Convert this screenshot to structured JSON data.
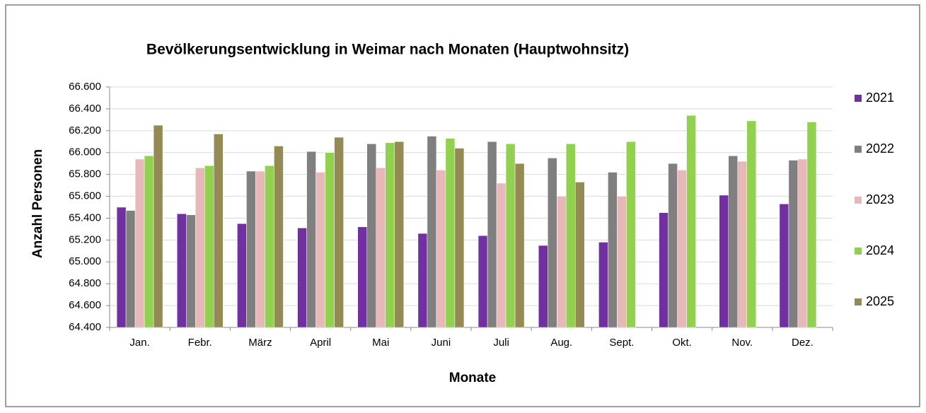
{
  "chart_data": {
    "type": "bar",
    "title": "Bevölkerungsentwicklung in Weimar nach Monaten (Hauptwohnsitz)",
    "x_label": "Monate",
    "y_label": "Anzahl Personen",
    "categories": [
      "Jan.",
      "Febr.",
      "März",
      "April",
      "Mai",
      "Juni",
      "Juli",
      "Aug.",
      "Sept.",
      "Okt.",
      "Nov.",
      "Dez."
    ],
    "series": [
      {
        "name": "2021",
        "color": "#7030a0",
        "values": [
          65500,
          65440,
          65350,
          65310,
          65320,
          65260,
          65240,
          65150,
          65180,
          65450,
          65610,
          65530
        ]
      },
      {
        "name": "2022",
        "color": "#7f7f7f",
        "values": [
          65470,
          65430,
          65830,
          66010,
          66080,
          66150,
          66100,
          65950,
          65820,
          65900,
          65970,
          65930
        ]
      },
      {
        "name": "2023",
        "color": "#e6b9b8",
        "values": [
          65940,
          65860,
          65830,
          65820,
          65860,
          65840,
          65720,
          65600,
          65600,
          65840,
          65920,
          65940
        ]
      },
      {
        "name": "2024",
        "color": "#92d050",
        "values": [
          65970,
          65880,
          65880,
          66000,
          66090,
          66130,
          66080,
          66080,
          66100,
          66340,
          66290,
          66280
        ]
      },
      {
        "name": "2025",
        "color": "#948a54",
        "values": [
          66250,
          66170,
          66060,
          66140,
          66100,
          66040,
          65900,
          65730,
          null,
          null,
          null,
          null
        ]
      }
    ],
    "ylim": [
      64400,
      66600
    ],
    "yticks": [
      {
        "value": 64400,
        "label": "64.400"
      },
      {
        "value": 64600,
        "label": "64.600"
      },
      {
        "value": 64800,
        "label": "64.800"
      },
      {
        "value": 65000,
        "label": "65.000"
      },
      {
        "value": 65200,
        "label": "65.200"
      },
      {
        "value": 65400,
        "label": "65.400"
      },
      {
        "value": 65600,
        "label": "65.600"
      },
      {
        "value": 65800,
        "label": "65.800"
      },
      {
        "value": 66000,
        "label": "66.000"
      },
      {
        "value": 66200,
        "label": "66.200"
      },
      {
        "value": 66400,
        "label": "66.400"
      },
      {
        "value": 66600,
        "label": "66.600"
      }
    ],
    "grid": true,
    "legend": "right"
  }
}
